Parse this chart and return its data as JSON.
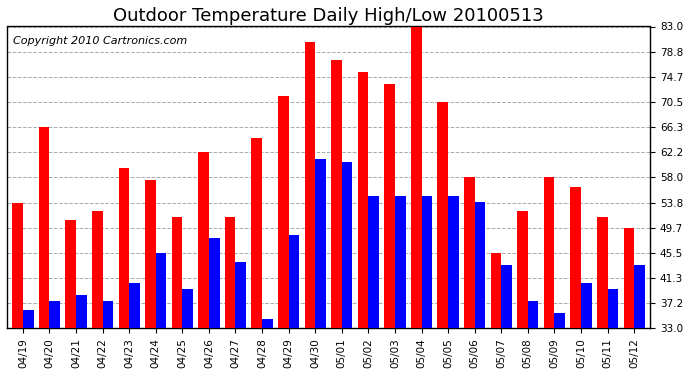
{
  "title": "Outdoor Temperature Daily High/Low 20100513",
  "copyright": "Copyright 2010 Cartronics.com",
  "dates": [
    "04/19",
    "04/20",
    "04/21",
    "04/22",
    "04/23",
    "04/24",
    "04/25",
    "04/26",
    "04/27",
    "04/28",
    "04/29",
    "04/30",
    "05/01",
    "05/02",
    "05/03",
    "05/04",
    "05/05",
    "05/06",
    "05/07",
    "05/08",
    "05/09",
    "05/10",
    "05/11",
    "05/12"
  ],
  "highs": [
    53.8,
    66.3,
    51.0,
    52.5,
    59.5,
    57.5,
    51.5,
    62.2,
    51.5,
    64.5,
    71.5,
    80.5,
    77.5,
    75.5,
    73.5,
    83.0,
    70.5,
    58.0,
    45.5,
    52.5,
    58.0,
    56.5,
    51.5,
    49.7
  ],
  "lows": [
    36.0,
    37.5,
    38.5,
    37.5,
    40.5,
    45.5,
    39.5,
    48.0,
    44.0,
    34.5,
    48.5,
    61.0,
    60.5,
    55.0,
    55.0,
    55.0,
    55.0,
    54.0,
    43.5,
    37.5,
    35.5,
    40.5,
    39.5,
    43.5
  ],
  "yticks": [
    33.0,
    37.2,
    41.3,
    45.5,
    49.7,
    53.8,
    58.0,
    62.2,
    66.3,
    70.5,
    74.7,
    78.8,
    83.0
  ],
  "ymin": 33.0,
  "ymax": 83.0,
  "bar_color_high": "#ff0000",
  "bar_color_low": "#0000ff",
  "background_color": "#ffffff",
  "grid_color": "#aaaaaa",
  "title_fontsize": 13,
  "copyright_fontsize": 8,
  "tick_fontsize": 7.5
}
